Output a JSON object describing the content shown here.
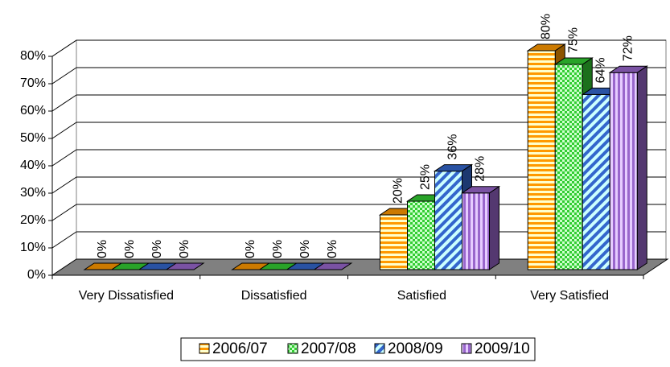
{
  "chart_data": {
    "type": "bar3d",
    "categories": [
      "Very Dissatisfied",
      "Dissatisfied",
      "Satisfied",
      "Very Satisfied"
    ],
    "series": [
      {
        "name": "2006/07",
        "color": "#ff9900",
        "values": [
          0,
          0,
          20,
          80
        ],
        "value_labels": [
          "0%",
          "0%",
          "20%",
          "80%"
        ]
      },
      {
        "name": "2007/08",
        "color": "#33cc33",
        "values": [
          0,
          0,
          25,
          75
        ],
        "value_labels": [
          "0%",
          "0%",
          "25%",
          "75%"
        ]
      },
      {
        "name": "2008/09",
        "color": "#3366cc",
        "values": [
          0,
          0,
          36,
          64
        ],
        "value_labels": [
          "0%",
          "0%",
          "36%",
          "64%"
        ]
      },
      {
        "name": "2009/10",
        "color": "#9966cc",
        "values": [
          0,
          0,
          28,
          72
        ],
        "value_labels": [
          "0%",
          "0%",
          "28%",
          "72%"
        ]
      }
    ],
    "ylim": [
      0,
      80
    ],
    "yticks": [
      {
        "value": 0,
        "label": "0%"
      },
      {
        "value": 10,
        "label": "10%"
      },
      {
        "value": 20,
        "label": "20%"
      },
      {
        "value": 30,
        "label": "30%"
      },
      {
        "value": 40,
        "label": "40%"
      },
      {
        "value": 50,
        "label": "50%"
      },
      {
        "value": 60,
        "label": "60%"
      },
      {
        "value": 70,
        "label": "70%"
      },
      {
        "value": 80,
        "label": "80%"
      }
    ],
    "grid": true
  }
}
